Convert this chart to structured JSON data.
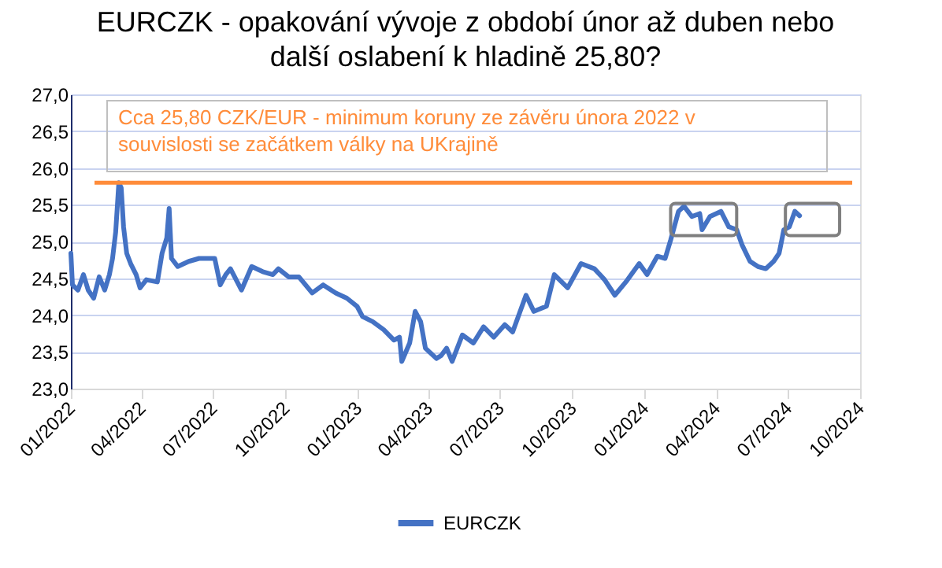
{
  "chart_data": {
    "type": "line",
    "title": "EURCZK - opakování vývoje z období únor až duben nebo další oslabení k hladině 25,80?",
    "x": [
      "2022-01-01",
      "2022-01-03",
      "2022-01-10",
      "2022-01-17",
      "2022-01-23",
      "2022-01-30",
      "2022-02-06",
      "2022-02-13",
      "2022-02-19",
      "2022-02-23",
      "2022-02-27",
      "2022-03-03",
      "2022-03-06",
      "2022-03-09",
      "2022-03-13",
      "2022-03-18",
      "2022-03-25",
      "2022-03-30",
      "2022-04-07",
      "2022-04-21",
      "2022-04-27",
      "2022-05-03",
      "2022-05-06",
      "2022-05-09",
      "2022-05-17",
      "2022-05-31",
      "2022-06-13",
      "2022-07-03",
      "2022-07-10",
      "2022-07-17",
      "2022-07-23",
      "2022-08-06",
      "2022-08-19",
      "2022-09-02",
      "2022-09-15",
      "2022-09-22",
      "2022-10-05",
      "2022-10-18",
      "2022-11-04",
      "2022-11-18",
      "2022-12-04",
      "2022-12-18",
      "2022-12-31",
      "2023-01-07",
      "2023-01-20",
      "2023-02-03",
      "2023-02-16",
      "2023-02-23",
      "2023-02-26",
      "2023-03-08",
      "2023-03-15",
      "2023-03-22",
      "2023-03-28",
      "2023-04-11",
      "2023-04-17",
      "2023-04-24",
      "2023-05-01",
      "2023-05-14",
      "2023-05-28",
      "2023-06-10",
      "2023-06-23",
      "2023-07-07",
      "2023-07-17",
      "2023-08-03",
      "2023-08-13",
      "2023-08-29",
      "2023-09-08",
      "2023-09-25",
      "2023-10-12",
      "2023-10-29",
      "2023-11-11",
      "2023-11-24",
      "2023-12-08",
      "2023-12-25",
      "2024-01-04",
      "2024-01-17",
      "2024-01-27",
      "2024-02-03",
      "2024-02-13",
      "2024-02-20",
      "2024-03-01",
      "2024-03-11",
      "2024-03-14",
      "2024-03-24",
      "2024-04-07",
      "2024-04-17",
      "2024-04-27",
      "2024-05-04",
      "2024-05-14",
      "2024-05-24",
      "2024-06-03",
      "2024-06-13",
      "2024-06-20",
      "2024-06-26",
      "2024-07-03",
      "2024-07-10",
      "2024-07-16"
    ],
    "series": [
      {
        "name": "EURCZK",
        "color": "#4472c4",
        "values": [
          24.84,
          24.41,
          24.34,
          24.55,
          24.34,
          24.23,
          24.52,
          24.34,
          24.55,
          24.77,
          25.13,
          25.8,
          25.73,
          25.2,
          24.84,
          24.7,
          24.55,
          24.37,
          24.48,
          24.45,
          24.84,
          25.05,
          25.45,
          24.77,
          24.66,
          24.73,
          24.77,
          24.77,
          24.41,
          24.55,
          24.63,
          24.34,
          24.66,
          24.59,
          24.55,
          24.63,
          24.52,
          24.52,
          24.3,
          24.41,
          24.3,
          24.23,
          24.12,
          23.98,
          23.91,
          23.8,
          23.66,
          23.7,
          23.37,
          23.62,
          24.05,
          23.91,
          23.55,
          23.41,
          23.45,
          23.55,
          23.37,
          23.73,
          23.62,
          23.84,
          23.7,
          23.87,
          23.77,
          24.27,
          24.05,
          24.12,
          24.55,
          24.37,
          24.7,
          24.63,
          24.48,
          24.27,
          24.45,
          24.7,
          24.55,
          24.8,
          24.77,
          25.02,
          25.41,
          25.48,
          25.34,
          25.38,
          25.16,
          25.34,
          25.41,
          25.2,
          25.16,
          24.95,
          24.73,
          24.66,
          24.63,
          24.73,
          24.84,
          25.16,
          25.2,
          25.41,
          25.35
        ]
      }
    ],
    "xlim": [
      "2022-01-01",
      "2024-10-01"
    ],
    "xticks": [
      {
        "value": "2022-01-01",
        "label": "01/2022"
      },
      {
        "value": "2022-04-01",
        "label": "04/2022"
      },
      {
        "value": "2022-07-01",
        "label": "07/2022"
      },
      {
        "value": "2022-10-01",
        "label": "10/2022"
      },
      {
        "value": "2023-01-01",
        "label": "01/2023"
      },
      {
        "value": "2023-04-01",
        "label": "04/2023"
      },
      {
        "value": "2023-07-01",
        "label": "07/2023"
      },
      {
        "value": "2023-10-01",
        "label": "10/2023"
      },
      {
        "value": "2024-01-01",
        "label": "01/2024"
      },
      {
        "value": "2024-04-01",
        "label": "04/2024"
      },
      {
        "value": "2024-07-01",
        "label": "07/2024"
      },
      {
        "value": "2024-10-01",
        "label": "10/2024"
      }
    ],
    "ylim": [
      23,
      27
    ],
    "yticks": [
      {
        "value": 23,
        "label": "23,0"
      },
      {
        "value": 23.5,
        "label": "23,5"
      },
      {
        "value": 24,
        "label": "24,0"
      },
      {
        "value": 24.5,
        "label": "24,5"
      },
      {
        "value": 25,
        "label": "25,0"
      },
      {
        "value": 25.5,
        "label": "25,5"
      },
      {
        "value": 26,
        "label": "26,0"
      },
      {
        "value": 26.5,
        "label": "26,5"
      },
      {
        "value": 27,
        "label": "27,0"
      }
    ],
    "ref_lines": [
      {
        "axis": "y",
        "value": 25.8,
        "color": "#ff8c3a",
        "label": "Cca 25,80 CZK/EUR - minimum koruny ze závěru února 2022 v souvislosti se začátkem války na UKrajině"
      }
    ],
    "grid": "y",
    "legend": "bottom",
    "line_style": "solid",
    "marker": "none"
  }
}
